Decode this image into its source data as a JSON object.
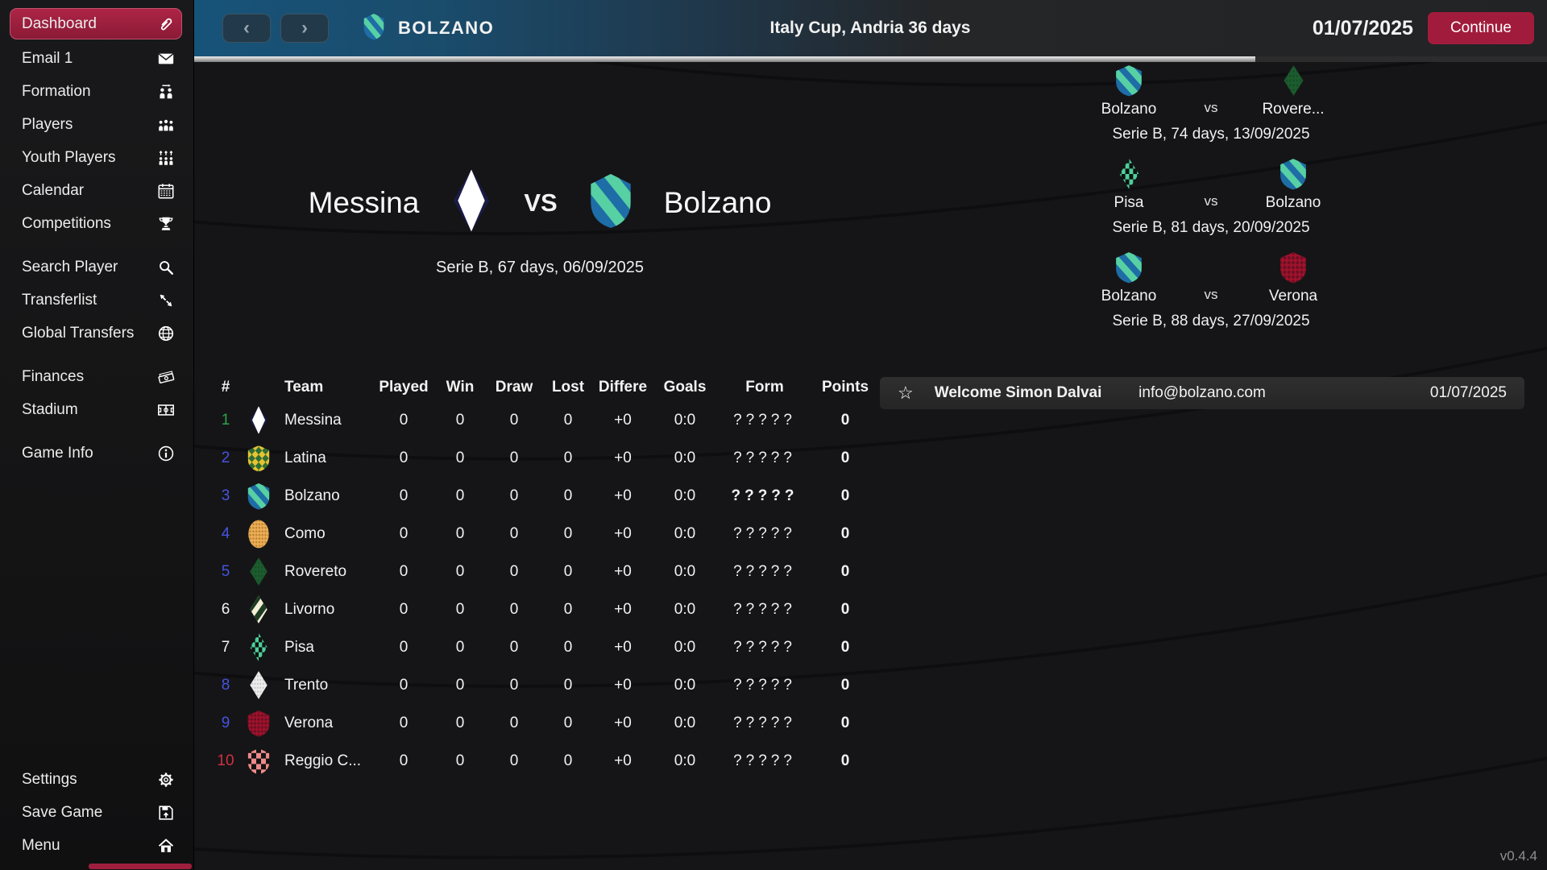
{
  "app": {
    "version": "v0.4.4"
  },
  "colors": {
    "accent_crimson": "#9d1c3b",
    "topbar_blue": "#175379",
    "promotion_green": "#2fa24a",
    "playoff_blue": "#4554e0",
    "relegation_red": "#cf3040"
  },
  "topbar": {
    "back_icon": "chevron-left-icon",
    "forward_icon": "chevron-right-icon",
    "club": "BOLZANO",
    "title": "Italy Cup, Andria 36 days",
    "date": "01/07/2025",
    "continue_label": "Continue"
  },
  "sidebar": {
    "groups": [
      [
        {
          "id": "dashboard",
          "label": "Dashboard",
          "icon": "paperclip-icon",
          "active": true
        },
        {
          "id": "email",
          "label": "Email 1",
          "icon": "envelope-icon",
          "active": false
        },
        {
          "id": "formation",
          "label": "Formation",
          "icon": "formation-icon",
          "active": false
        },
        {
          "id": "players",
          "label": "Players",
          "icon": "players-icon",
          "active": false
        },
        {
          "id": "youth-players",
          "label": "Youth Players",
          "icon": "youth-players-icon",
          "active": false
        },
        {
          "id": "calendar",
          "label": "Calendar",
          "icon": "calendar-icon",
          "active": false
        },
        {
          "id": "competitions",
          "label": "Competitions",
          "icon": "trophy-icon",
          "active": false
        }
      ],
      [
        {
          "id": "search-player",
          "label": "Search Player",
          "icon": "search-icon",
          "active": false
        },
        {
          "id": "transferlist",
          "label": "Transferlist",
          "icon": "transfer-arrows-icon",
          "active": false
        },
        {
          "id": "global-transfers",
          "label": "Global Transfers",
          "icon": "globe-icon",
          "active": false
        }
      ],
      [
        {
          "id": "finances",
          "label": "Finances",
          "icon": "money-icon",
          "active": false
        },
        {
          "id": "stadium",
          "label": "Stadium",
          "icon": "stadium-icon",
          "active": false
        }
      ],
      [
        {
          "id": "game-info",
          "label": "Game Info",
          "icon": "info-icon",
          "active": false
        }
      ]
    ],
    "bottom": [
      {
        "id": "settings",
        "label": "Settings",
        "icon": "gear-icon",
        "active": false
      },
      {
        "id": "save-game",
        "label": "Save Game",
        "icon": "save-icon",
        "active": false
      },
      {
        "id": "menu",
        "label": "Menu",
        "icon": "home-icon",
        "active": false
      }
    ]
  },
  "match": {
    "home": "Messina",
    "home_logo": "messina",
    "vs_label": "VS",
    "away": "Bolzano",
    "away_logo": "bolzano",
    "detail": "Serie B, 67 days, 06/09/2025"
  },
  "fixtures": [
    {
      "home": "Bolzano",
      "home_logo": "bolzano",
      "vs": "vs",
      "away": "Rovere...",
      "away_logo": "rovereto",
      "detail": "Serie B, 74 days, 13/09/2025"
    },
    {
      "home": "Pisa",
      "home_logo": "pisa",
      "vs": "vs",
      "away": "Bolzano",
      "away_logo": "bolzano",
      "detail": "Serie B, 81 days, 20/09/2025"
    },
    {
      "home": "Bolzano",
      "home_logo": "bolzano",
      "vs": "vs",
      "away": "Verona",
      "away_logo": "verona",
      "detail": "Serie B, 88 days, 27/09/2025"
    }
  ],
  "welcome": {
    "icon": "star-icon",
    "message": "Welcome Simon Dalvai",
    "email": "info@bolzano.com",
    "date": "01/07/2025"
  },
  "table": {
    "columns": [
      "#",
      "Team",
      "Played",
      "Win",
      "Draw",
      "Lost",
      "Differe",
      "Goals",
      "Form",
      "Points"
    ],
    "rows": [
      {
        "pos": "1",
        "pos_color": "#2fa24a",
        "team": "Messina",
        "logo": "messina",
        "played": "0",
        "win": "0",
        "draw": "0",
        "lost": "0",
        "diff": "+0",
        "goals": "0:0",
        "form": "?????",
        "points": "0",
        "highlight": false
      },
      {
        "pos": "2",
        "pos_color": "#4554e0",
        "team": "Latina",
        "logo": "latina",
        "played": "0",
        "win": "0",
        "draw": "0",
        "lost": "0",
        "diff": "+0",
        "goals": "0:0",
        "form": "?????",
        "points": "0",
        "highlight": false
      },
      {
        "pos": "3",
        "pos_color": "#4554e0",
        "team": "Bolzano",
        "logo": "bolzano",
        "played": "0",
        "win": "0",
        "draw": "0",
        "lost": "0",
        "diff": "+0",
        "goals": "0:0",
        "form": "?????",
        "points": "0",
        "highlight": true
      },
      {
        "pos": "4",
        "pos_color": "#4554e0",
        "team": "Como",
        "logo": "como",
        "played": "0",
        "win": "0",
        "draw": "0",
        "lost": "0",
        "diff": "+0",
        "goals": "0:0",
        "form": "?????",
        "points": "0",
        "highlight": false
      },
      {
        "pos": "5",
        "pos_color": "#4554e0",
        "team": "Rovereto",
        "logo": "rovereto",
        "played": "0",
        "win": "0",
        "draw": "0",
        "lost": "0",
        "diff": "+0",
        "goals": "0:0",
        "form": "?????",
        "points": "0",
        "highlight": false
      },
      {
        "pos": "6",
        "pos_color": "#f2f2f2",
        "team": "Livorno",
        "logo": "livorno",
        "played": "0",
        "win": "0",
        "draw": "0",
        "lost": "0",
        "diff": "+0",
        "goals": "0:0",
        "form": "?????",
        "points": "0",
        "highlight": false
      },
      {
        "pos": "7",
        "pos_color": "#f2f2f2",
        "team": "Pisa",
        "logo": "pisa",
        "played": "0",
        "win": "0",
        "draw": "0",
        "lost": "0",
        "diff": "+0",
        "goals": "0:0",
        "form": "?????",
        "points": "0",
        "highlight": false
      },
      {
        "pos": "8",
        "pos_color": "#4554e0",
        "team": "Trento",
        "logo": "trento",
        "played": "0",
        "win": "0",
        "draw": "0",
        "lost": "0",
        "diff": "+0",
        "goals": "0:0",
        "form": "?????",
        "points": "0",
        "highlight": false
      },
      {
        "pos": "9",
        "pos_color": "#4554e0",
        "team": "Verona",
        "logo": "verona",
        "played": "0",
        "win": "0",
        "draw": "0",
        "lost": "0",
        "diff": "+0",
        "goals": "0:0",
        "form": "?????",
        "points": "0",
        "highlight": false
      },
      {
        "pos": "10",
        "pos_color": "#cf3040",
        "team": "Reggio C...",
        "logo": "reggio",
        "played": "0",
        "win": "0",
        "draw": "0",
        "lost": "0",
        "diff": "+0",
        "goals": "0:0",
        "form": "?????",
        "points": "0",
        "highlight": false
      }
    ]
  },
  "team_logos": {
    "messina": {
      "shape": "diamond",
      "style": "tips",
      "colors": [
        "#1a1a46",
        "#ffffff"
      ]
    },
    "latina": {
      "shape": "shield",
      "style": "diag-checker",
      "n": 5,
      "colors": [
        "#2e6d35",
        "#e7c332"
      ]
    },
    "bolzano": {
      "shape": "shield",
      "style": "stripes",
      "angle": 45,
      "colors": [
        "#1e6da6",
        "#57d0a4"
      ]
    },
    "como": {
      "shape": "oval",
      "style": "dots",
      "gap": 4,
      "r": 1.3,
      "colors": [
        "#edb058",
        "#c08434"
      ]
    },
    "rovereto": {
      "shape": "diamond",
      "style": "dots",
      "gap": 5,
      "r": 1.4,
      "colors": [
        "#1c5c2e",
        "#174d27"
      ]
    },
    "livorno": {
      "shape": "diamond",
      "style": "stripes",
      "angle": -45,
      "colors": [
        "#f4efd6",
        "#1d3b22"
      ]
    },
    "pisa": {
      "shape": "diamond",
      "style": "checker",
      "n": 6,
      "colors": [
        "#101010",
        "#4ccf9b"
      ]
    },
    "trento": {
      "shape": "diamond",
      "style": "dots",
      "gap": 4.5,
      "r": 1.1,
      "colors": [
        "#ececec",
        "#c2c2c2"
      ]
    },
    "verona": {
      "shape": "shield",
      "style": "dots",
      "gap": 5,
      "r": 1.9,
      "colors": [
        "#a3122c",
        "#6d1024"
      ]
    },
    "reggio": {
      "shape": "shield",
      "style": "checker",
      "n": 5,
      "colors": [
        "#131313",
        "#ef8a8a"
      ]
    }
  }
}
